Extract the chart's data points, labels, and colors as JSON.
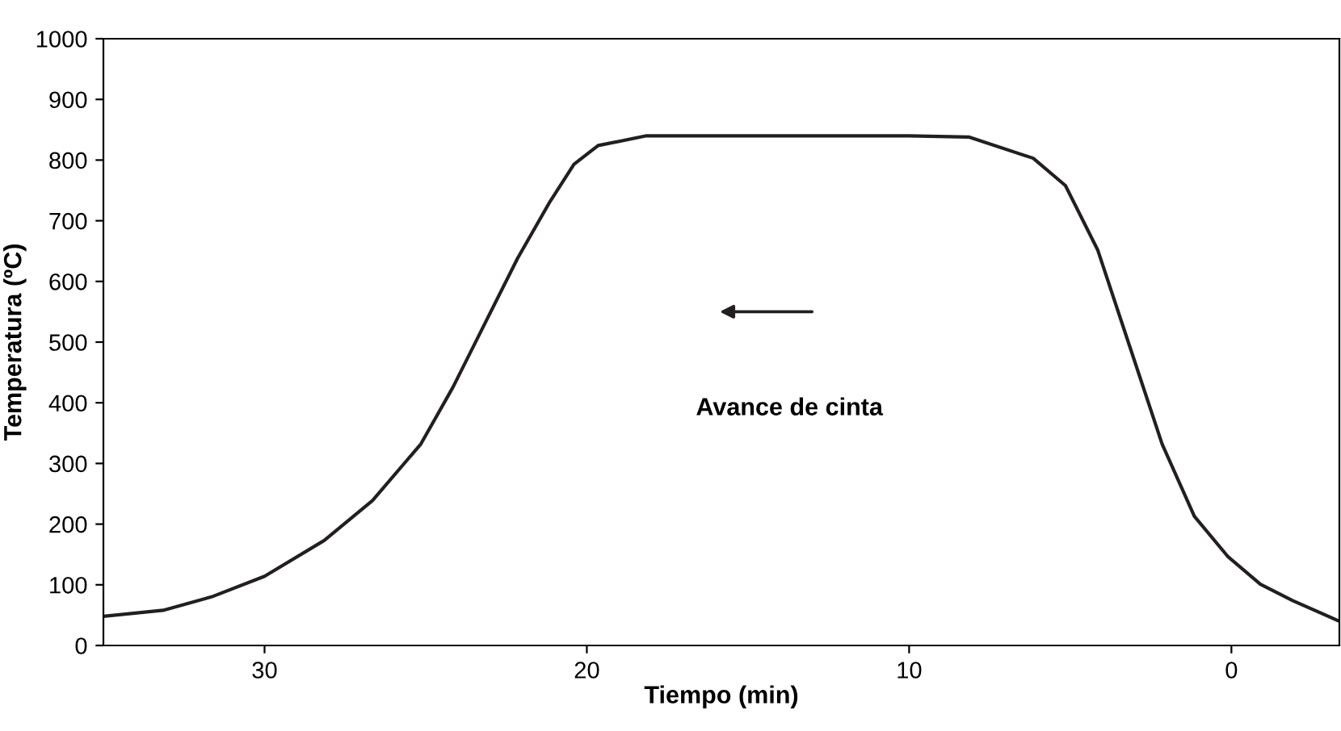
{
  "chart_data": {
    "type": "line",
    "xlabel": "Tiempo (min)",
    "ylabel": "Temperatura (ºC)",
    "xlim": [
      35,
      -3.35
    ],
    "xticks": [
      30,
      20,
      10,
      0
    ],
    "ylim": [
      0,
      1000
    ],
    "yticks": [
      0,
      100,
      200,
      300,
      400,
      500,
      600,
      700,
      800,
      900,
      1000
    ],
    "grid": false,
    "legend": false,
    "marker": "none",
    "line_style": "solid",
    "annotations": [
      "Avance de cinta"
    ],
    "series": [
      {
        "color": "#231f20",
        "x": [
          35,
          33.15,
          31.65,
          30,
          28.15,
          26.65,
          25.15,
          24.15,
          23.15,
          22.15,
          21.15,
          20.4,
          19.65,
          18.15,
          13.15,
          10,
          8.15,
          6.15,
          5.15,
          4.15,
          3.15,
          2.15,
          1.15,
          0.1,
          -0.9,
          -1.9,
          -3.35
        ],
        "values": [
          48,
          58,
          80,
          114,
          173,
          239,
          332,
          426,
          532,
          638,
          731,
          793,
          824,
          840,
          840,
          840,
          838,
          803,
          758,
          652,
          492,
          332,
          213,
          146,
          101,
          74,
          40
        ]
      }
    ]
  }
}
